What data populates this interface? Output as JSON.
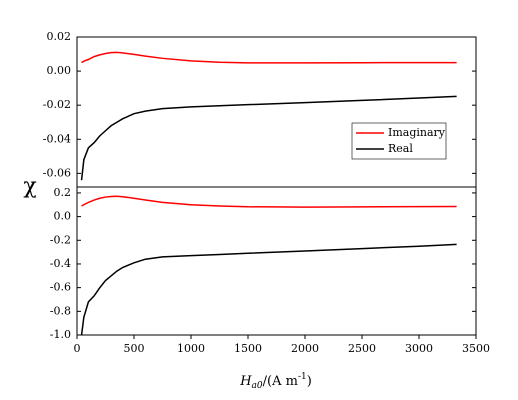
{
  "chart_data": [
    {
      "type": "line",
      "ylabel": "χ",
      "x": [
        40,
        60,
        100,
        150,
        200,
        250,
        300,
        350,
        400,
        500,
        600,
        750,
        1000,
        1250,
        1500,
        2000,
        2500,
        3000,
        3330
      ],
      "xlim": [
        0,
        3500
      ],
      "ylim": [
        -0.068,
        0.02
      ],
      "yticks": [
        0.02,
        {
          "value": 0,
          "label": "0.00"
        },
        -0.02,
        -0.04,
        -0.06
      ],
      "legend": "right",
      "series": [
        {
          "name": "Imaginary",
          "color": "#ff0000",
          "values": [
            0.005,
            0.0058,
            0.0068,
            0.0085,
            0.0095,
            0.0103,
            0.0108,
            0.011,
            0.0107,
            0.0098,
            0.0088,
            0.0075,
            0.006,
            0.0052,
            0.0048,
            0.0048,
            0.0049,
            0.005,
            0.005
          ]
        },
        {
          "name": "Real",
          "color": "#000000",
          "values": [
            -0.064,
            -0.052,
            -0.045,
            -0.042,
            -0.038,
            -0.035,
            -0.032,
            -0.03,
            -0.028,
            -0.025,
            -0.0235,
            -0.022,
            -0.021,
            -0.0203,
            -0.0197,
            -0.0185,
            -0.0172,
            -0.0158,
            -0.0148
          ]
        }
      ]
    },
    {
      "type": "line",
      "x": [
        40,
        60,
        100,
        150,
        200,
        250,
        300,
        350,
        400,
        500,
        600,
        750,
        1000,
        1250,
        1500,
        2000,
        2500,
        3000,
        3330
      ],
      "xlim": [
        0,
        3500
      ],
      "xticks": [
        0,
        500,
        1000,
        1500,
        2000,
        2500,
        3000,
        3500
      ],
      "xlabel": {
        "main": "H",
        "sub": "a0",
        "rest": "/(A m",
        "sup": "-1",
        "end": ")"
      },
      "ylim": [
        -1.0,
        0.25
      ],
      "yticks": [
        0.2,
        {
          "value": 0,
          "label": "0.0"
        },
        -0.2,
        -0.4,
        -0.6,
        -0.8,
        {
          "value": -1,
          "label": "-1.0"
        }
      ],
      "series": [
        {
          "color": "#ff0000",
          "values": [
            0.09,
            0.1,
            0.12,
            0.14,
            0.155,
            0.165,
            0.17,
            0.172,
            0.168,
            0.155,
            0.14,
            0.12,
            0.1,
            0.09,
            0.083,
            0.08,
            0.082,
            0.084,
            0.085
          ]
        },
        {
          "color": "#000000",
          "values": [
            -1.0,
            -0.85,
            -0.72,
            -0.67,
            -0.6,
            -0.54,
            -0.5,
            -0.46,
            -0.43,
            -0.39,
            -0.36,
            -0.34,
            -0.33,
            -0.32,
            -0.31,
            -0.29,
            -0.27,
            -0.25,
            -0.235
          ]
        }
      ]
    }
  ]
}
